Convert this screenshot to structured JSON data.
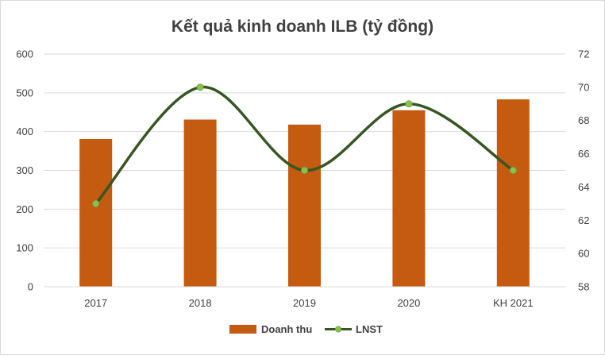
{
  "chart_data": {
    "type": "bar",
    "title": "Kết quả kinh doanh ILB (tỷ đồng)",
    "categories": [
      "2017",
      "2018",
      "2019",
      "2020",
      "KH 2021"
    ],
    "series": [
      {
        "name": "Doanh thu",
        "type": "bar",
        "axis": "left",
        "values": [
          381,
          431,
          418,
          455,
          483
        ]
      },
      {
        "name": "LNST",
        "type": "line",
        "axis": "right",
        "smooth": true,
        "values": [
          63,
          70,
          65,
          69,
          65
        ]
      }
    ],
    "y_left": {
      "min": 0,
      "max": 600,
      "step": 100,
      "ticks": [
        "0",
        "100",
        "200",
        "300",
        "400",
        "500",
        "600"
      ]
    },
    "y_right": {
      "min": 58,
      "max": 72,
      "step": 2,
      "ticks": [
        "58",
        "60",
        "62",
        "64",
        "66",
        "68",
        "70",
        "72"
      ]
    },
    "grid": true,
    "legend": "bottom",
    "colors": {
      "bar": "#C55A11",
      "line": "#375623",
      "marker": "#8BC34A",
      "grid": "#D9D9D9",
      "text": "#404040"
    }
  }
}
